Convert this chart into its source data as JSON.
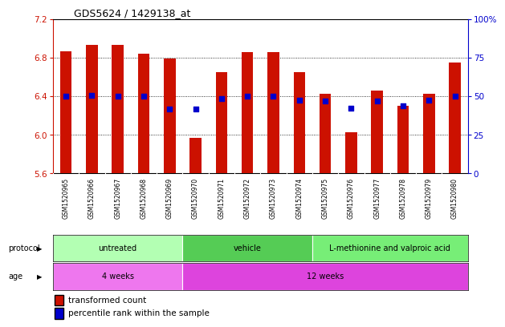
{
  "title": "GDS5624 / 1429138_at",
  "samples": [
    "GSM1520965",
    "GSM1520966",
    "GSM1520967",
    "GSM1520968",
    "GSM1520969",
    "GSM1520970",
    "GSM1520971",
    "GSM1520972",
    "GSM1520973",
    "GSM1520974",
    "GSM1520975",
    "GSM1520976",
    "GSM1520977",
    "GSM1520978",
    "GSM1520979",
    "GSM1520980"
  ],
  "bar_tops": [
    6.87,
    6.93,
    6.93,
    6.84,
    6.79,
    5.97,
    6.65,
    6.86,
    6.86,
    6.65,
    6.43,
    6.03,
    6.46,
    6.3,
    6.43,
    6.75
  ],
  "bar_base": 5.6,
  "blue_dots_y": [
    6.4,
    6.41,
    6.4,
    6.4,
    6.27,
    6.27,
    6.38,
    6.4,
    6.4,
    6.36,
    6.35,
    6.28,
    6.35,
    6.3,
    6.36,
    6.4
  ],
  "ylim_left": [
    5.6,
    7.2
  ],
  "yticks_left": [
    5.6,
    6.0,
    6.4,
    6.8,
    7.2
  ],
  "ylim_right": [
    0,
    100
  ],
  "yticks_right": [
    0,
    25,
    50,
    75,
    100
  ],
  "ytick_labels_right": [
    "0",
    "25",
    "50",
    "75",
    "100%"
  ],
  "bar_color": "#cc1100",
  "dot_color": "#0000cc",
  "left_tick_color": "#cc1100",
  "right_tick_color": "#0000cc",
  "protocol_groups": [
    {
      "label": "untreated",
      "start": 0,
      "end": 4,
      "color": "#b3ffb3"
    },
    {
      "label": "vehicle",
      "start": 5,
      "end": 9,
      "color": "#55cc55"
    },
    {
      "label": "L-methionine and valproic acid",
      "start": 10,
      "end": 15,
      "color": "#77ee77"
    }
  ],
  "age_groups": [
    {
      "label": "4 weeks",
      "start": 0,
      "end": 4,
      "color": "#ee77ee"
    },
    {
      "label": "12 weeks",
      "start": 5,
      "end": 15,
      "color": "#dd44dd"
    }
  ],
  "legend_bar_label": "transformed count",
  "legend_dot_label": "percentile rank within the sample",
  "protocol_row_label": "protocol",
  "age_row_label": "age",
  "xticklabel_bg": "#d0d0d0",
  "xticklabel_line_color": "#aaaaaa"
}
